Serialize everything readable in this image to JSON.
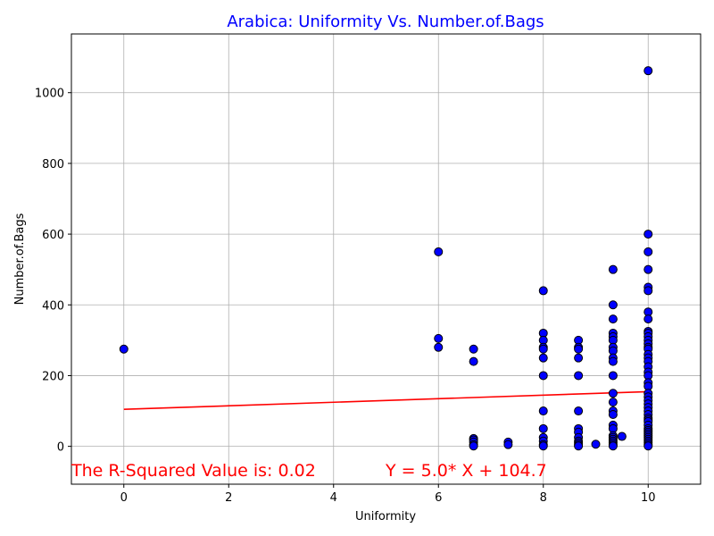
{
  "chart_data": {
    "type": "scatter",
    "title": "Arabica: Uniformity Vs. Number.of.Bags",
    "title_color": "#0000ff",
    "xlabel": "Uniformity",
    "ylabel": "Number.of.Bags",
    "xlim": [
      -1,
      11
    ],
    "ylim": [
      -107,
      1166
    ],
    "xticks": [
      0,
      2,
      4,
      6,
      8,
      10
    ],
    "yticks": [
      0,
      200,
      400,
      600,
      800,
      1000
    ],
    "grid": true,
    "marker_color": "#0000ff",
    "marker_edge_color": "#000000",
    "line_color": "#ff0000",
    "regression": {
      "slope": 5.0,
      "intercept": 104.7,
      "x_range": [
        0,
        10
      ]
    },
    "annotations": [
      {
        "id": "r2",
        "text": "The R-Squared Value is: 0.02",
        "color": "#ff0000"
      },
      {
        "id": "eq",
        "text": "Y = 5.0* X + 104.7",
        "color": "#ff0000"
      }
    ],
    "points": [
      [
        0,
        275
      ],
      [
        6,
        550
      ],
      [
        6,
        305
      ],
      [
        6,
        280
      ],
      [
        6.67,
        275
      ],
      [
        6.67,
        240
      ],
      [
        6.67,
        22
      ],
      [
        6.67,
        18
      ],
      [
        6.67,
        12
      ],
      [
        6.67,
        5
      ],
      [
        6.67,
        1
      ],
      [
        7.33,
        12
      ],
      [
        7.33,
        5
      ],
      [
        8,
        440
      ],
      [
        8,
        320
      ],
      [
        8,
        300
      ],
      [
        8,
        280
      ],
      [
        8,
        275
      ],
      [
        8,
        250
      ],
      [
        8,
        200
      ],
      [
        8,
        100
      ],
      [
        8,
        50
      ],
      [
        8,
        25
      ],
      [
        8,
        15
      ],
      [
        8,
        5
      ],
      [
        8,
        1
      ],
      [
        8.67,
        300
      ],
      [
        8.67,
        280
      ],
      [
        8.67,
        275
      ],
      [
        8.67,
        250
      ],
      [
        8.67,
        200
      ],
      [
        8.67,
        100
      ],
      [
        8.67,
        50
      ],
      [
        8.67,
        40
      ],
      [
        8.67,
        25
      ],
      [
        8.67,
        15
      ],
      [
        8.67,
        10
      ],
      [
        8.67,
        5
      ],
      [
        8.67,
        1
      ],
      [
        9,
        6
      ],
      [
        9.33,
        500
      ],
      [
        9.33,
        400
      ],
      [
        9.33,
        360
      ],
      [
        9.33,
        320
      ],
      [
        9.33,
        310
      ],
      [
        9.33,
        300
      ],
      [
        9.33,
        280
      ],
      [
        9.33,
        270
      ],
      [
        9.33,
        250
      ],
      [
        9.33,
        240
      ],
      [
        9.33,
        200
      ],
      [
        9.33,
        150
      ],
      [
        9.33,
        125
      ],
      [
        9.33,
        100
      ],
      [
        9.33,
        90
      ],
      [
        9.33,
        60
      ],
      [
        9.33,
        50
      ],
      [
        9.33,
        30
      ],
      [
        9.33,
        25
      ],
      [
        9.33,
        20
      ],
      [
        9.33,
        15
      ],
      [
        9.33,
        10
      ],
      [
        9.33,
        5
      ],
      [
        9.33,
        1
      ],
      [
        9.5,
        28
      ],
      [
        10,
        1062
      ],
      [
        10,
        600
      ],
      [
        10,
        550
      ],
      [
        10,
        500
      ],
      [
        10,
        450
      ],
      [
        10,
        440
      ],
      [
        10,
        380
      ],
      [
        10,
        360
      ],
      [
        10,
        325
      ],
      [
        10,
        320
      ],
      [
        10,
        310
      ],
      [
        10,
        300
      ],
      [
        10,
        290
      ],
      [
        10,
        280
      ],
      [
        10,
        275
      ],
      [
        10,
        260
      ],
      [
        10,
        250
      ],
      [
        10,
        240
      ],
      [
        10,
        225
      ],
      [
        10,
        210
      ],
      [
        10,
        200
      ],
      [
        10,
        180
      ],
      [
        10,
        170
      ],
      [
        10,
        150
      ],
      [
        10,
        140
      ],
      [
        10,
        130
      ],
      [
        10,
        120
      ],
      [
        10,
        110
      ],
      [
        10,
        100
      ],
      [
        10,
        90
      ],
      [
        10,
        80
      ],
      [
        10,
        75
      ],
      [
        10,
        70
      ],
      [
        10,
        60
      ],
      [
        10,
        50
      ],
      [
        10,
        45
      ],
      [
        10,
        40
      ],
      [
        10,
        35
      ],
      [
        10,
        30
      ],
      [
        10,
        25
      ],
      [
        10,
        20
      ],
      [
        10,
        15
      ],
      [
        10,
        10
      ],
      [
        10,
        5
      ],
      [
        10,
        1
      ]
    ]
  }
}
